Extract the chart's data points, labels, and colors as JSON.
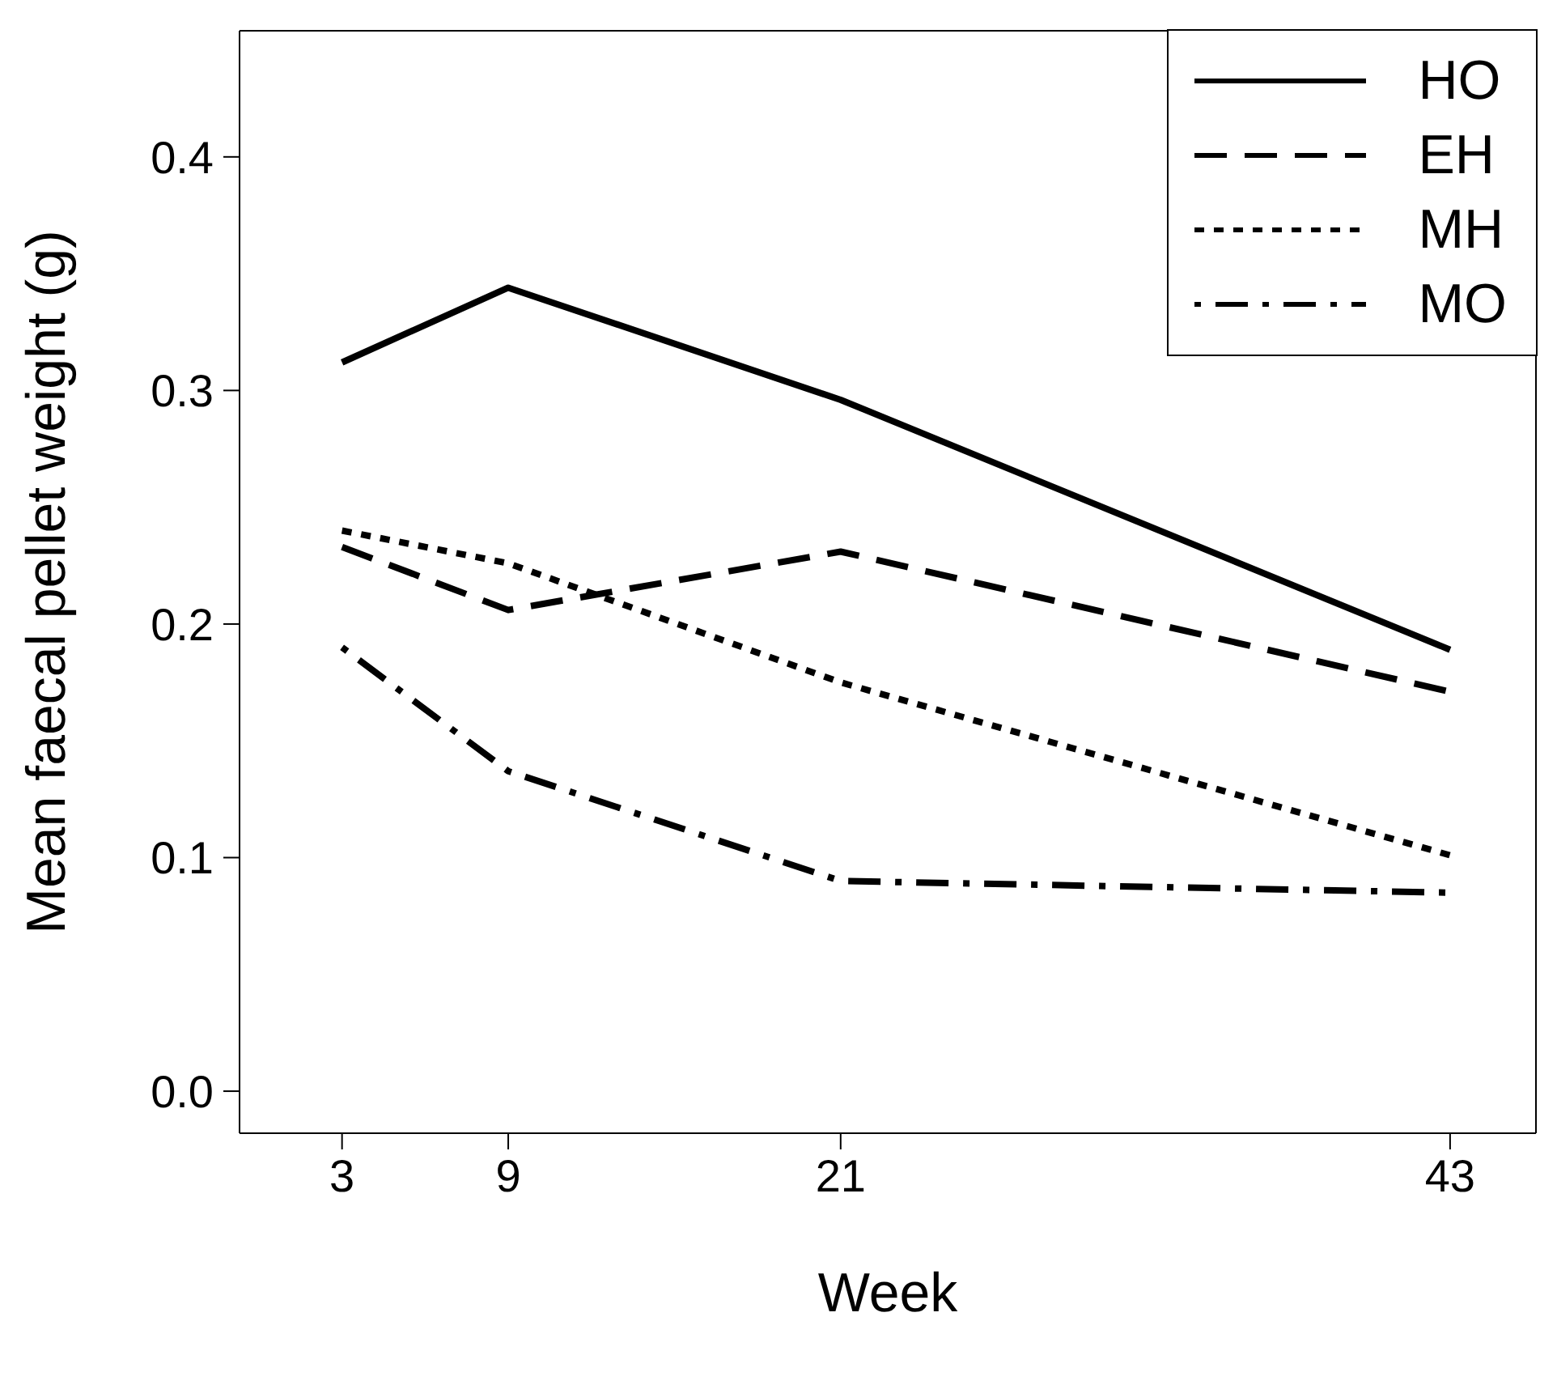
{
  "chart_data": {
    "type": "line",
    "xlabel": "Week",
    "ylabel": "Mean faecal pellet weight (g)",
    "x": [
      3,
      9,
      21,
      43
    ],
    "xlim": [
      -0.7,
      46.1
    ],
    "xticks": [
      3,
      9,
      21,
      43
    ],
    "ylim": [
      -0.018,
      0.454
    ],
    "yticks": [
      {
        "value": 0,
        "label": "0.0"
      },
      0.1,
      0.2,
      0.3,
      0.4
    ],
    "grid": false,
    "legend": "top right",
    "marker": "none",
    "series": [
      {
        "name": "HO",
        "color": "#000000",
        "line_style": "solid",
        "values": [
          0.312,
          0.344,
          0.296,
          0.189
        ]
      },
      {
        "name": "EH",
        "color": "#000000",
        "line_style": "dashed",
        "values": [
          0.233,
          0.206,
          0.231,
          0.171
        ]
      },
      {
        "name": "MH",
        "color": "#000000",
        "line_style": "dotted",
        "values": [
          0.24,
          0.226,
          0.175,
          0.101
        ]
      },
      {
        "name": "MO",
        "color": "#000000",
        "line_style": "dashdot",
        "values": [
          0.19,
          0.137,
          0.09,
          0.085
        ]
      }
    ]
  }
}
